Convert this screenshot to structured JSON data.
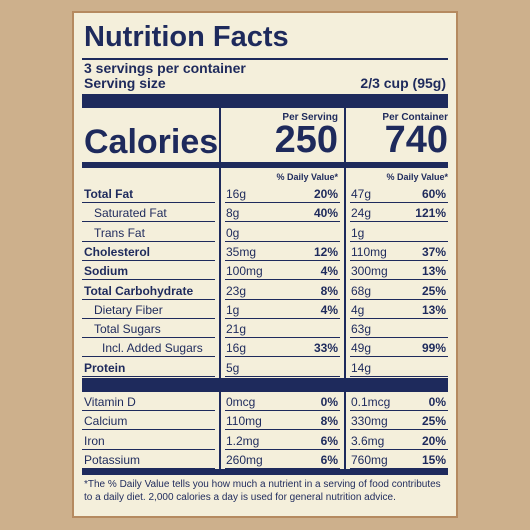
{
  "title": "Nutrition Facts",
  "servings": "3 servings per container",
  "serving_size_label": "Serving size",
  "serving_size": "2/3 cup (95g)",
  "calories_label": "Calories",
  "per_serving": {
    "header": "Per Serving",
    "calories": "250",
    "dv_header": "% Daily Value*"
  },
  "per_container": {
    "header": "Per Container",
    "calories": "740",
    "dv_header": "% Daily Value*"
  },
  "nutrients": [
    {
      "name": "Total Fat",
      "bold": true,
      "serving_amount": "16g",
      "serving_dv": "20%",
      "container_amount": "47g",
      "container_dv": "60%"
    },
    {
      "name": "Saturated Fat",
      "indent": true,
      "serving_amount": "8g",
      "serving_dv": "40%",
      "container_amount": "24g",
      "container_dv": "121%"
    },
    {
      "name": "Trans Fat",
      "indent": true,
      "serving_amount": "0g",
      "container_amount": "1g"
    },
    {
      "name": "Cholesterol",
      "bold": true,
      "serving_amount": "35mg",
      "serving_dv": "12%",
      "container_amount": "110mg",
      "container_dv": "37%"
    },
    {
      "name": "Sodium",
      "bold": true,
      "serving_amount": "100mg",
      "serving_dv": "4%",
      "container_amount": "300mg",
      "container_dv": "13%"
    },
    {
      "name": "Total Carbohydrate",
      "bold": true,
      "serving_amount": "23g",
      "serving_dv": "8%",
      "container_amount": "68g",
      "container_dv": "25%"
    },
    {
      "name": "Dietary Fiber",
      "indent": true,
      "serving_amount": "1g",
      "serving_dv": "4%",
      "container_amount": "4g",
      "container_dv": "13%"
    },
    {
      "name": "Total Sugars",
      "indent": true,
      "serving_amount": "21g",
      "container_amount": "63g"
    },
    {
      "name": "Incl. Added Sugars",
      "indent": true,
      "deep": true,
      "serving_amount": "16g",
      "serving_dv": "33%",
      "container_amount": "49g",
      "container_dv": "99%"
    },
    {
      "name": "Protein",
      "bold": true,
      "serving_amount": "5g",
      "container_amount": "14g"
    }
  ],
  "vitamins": [
    {
      "name": "Vitamin D",
      "serving_amount": "0mcg",
      "serving_dv": "0%",
      "container_amount": "0.1mcg",
      "container_dv": "0%"
    },
    {
      "name": "Calcium",
      "serving_amount": "110mg",
      "serving_dv": "8%",
      "container_amount": "330mg",
      "container_dv": "25%"
    },
    {
      "name": "Iron",
      "serving_amount": "1.2mg",
      "serving_dv": "6%",
      "container_amount": "3.6mg",
      "container_dv": "20%"
    },
    {
      "name": "Potassium",
      "serving_amount": "260mg",
      "serving_dv": "6%",
      "container_amount": "760mg",
      "container_dv": "15%"
    }
  ],
  "footnote": "*The % Daily Value tells you how much a nutrient in a serving of food contributes to a daily diet. 2,000 calories a day is used for general nutrition advice."
}
